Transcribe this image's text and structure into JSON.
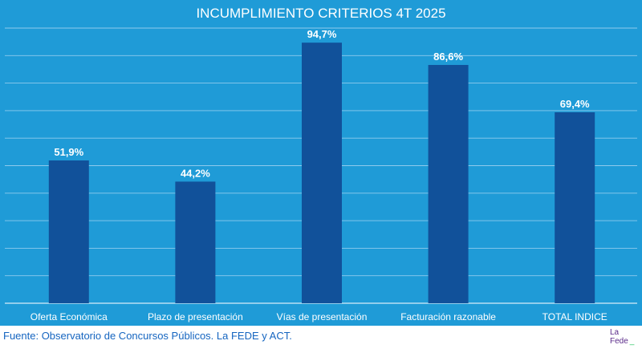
{
  "chart_data": {
    "type": "bar",
    "title": "INCUMPLIMIENTO CRITERIOS 4T 2025",
    "categories": [
      "Oferta Económica",
      "Plazo de presentación",
      "Vías de presentación",
      "Facturación razonable",
      "TOTAL INDICE"
    ],
    "values": [
      51.9,
      44.2,
      94.7,
      86.6,
      69.4
    ],
    "value_labels": [
      "51,9%",
      "44,2%",
      "94,7%",
      "86,6%",
      "69,4%"
    ],
    "xlabel": "",
    "ylabel": "",
    "ylim": [
      0,
      100
    ],
    "grid": true,
    "bar_color": "#11519a",
    "background_color": "#1f9bd7"
  },
  "footer": {
    "source": "Fuente: Observatorio de Concursos Públicos. La FEDE y ACT.",
    "logo_line1": "La",
    "logo_line2": "Fede"
  }
}
